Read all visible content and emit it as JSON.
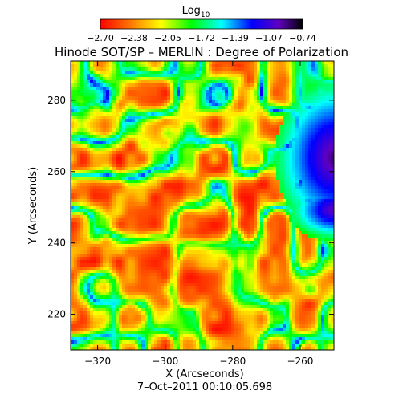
{
  "chart_data": {
    "type": "heatmap",
    "title": "Hinode SOT/SP – MERLIN : Degree of Polarization",
    "xlabel": "X (Arcseconds)",
    "ylabel": "Y (Arcseconds)",
    "timestamp": "7–Oct–2011 00:10:05.698",
    "xlim": [
      -328,
      -250
    ],
    "ylim": [
      210,
      291
    ],
    "x_ticks": [
      -320,
      -300,
      -280,
      -260
    ],
    "y_ticks": [
      220,
      240,
      260,
      280
    ],
    "colorbar": {
      "label": "Log",
      "label_sub": "10",
      "scale": "log10",
      "range": [
        -2.7,
        -0.74
      ],
      "ticks": [
        "−2.70",
        "−2.38",
        "−2.05",
        "−1.72",
        "−1.39",
        "−1.07",
        "−0.74"
      ],
      "colors": [
        "#ff0000",
        "#ff8000",
        "#ffff00",
        "#00ff00",
        "#00ffff",
        "#0000ff",
        "#6000c0",
        "#000000"
      ]
    }
  }
}
